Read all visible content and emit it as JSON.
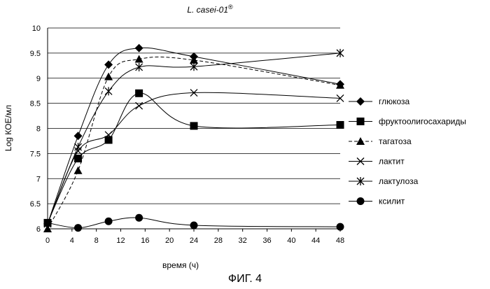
{
  "chart_data": {
    "type": "line",
    "title": "L. casei-01",
    "title_mark": "®",
    "xlabel": "время (ч)",
    "ylabel": "Log КОЕ/мл",
    "xlim": [
      0,
      48
    ],
    "ylim": [
      6,
      10
    ],
    "x_ticks": [
      "0",
      "4",
      "8",
      "12",
      "16",
      "20",
      "24",
      "28",
      "32",
      "36",
      "40",
      "44",
      "48"
    ],
    "y_ticks": [
      "6",
      "6.5",
      "7",
      "7.5",
      "8",
      "8.5",
      "9",
      "9.5",
      "10"
    ],
    "grid": "horizontal",
    "legend_position": "right",
    "series": [
      {
        "name": "глюкоза",
        "marker": "diamond",
        "dash": "solid",
        "x": [
          0,
          5,
          10,
          15,
          24,
          48
        ],
        "values": [
          6.1,
          7.85,
          9.27,
          9.6,
          9.43,
          8.88
        ]
      },
      {
        "name": "фруктоолигосахариды",
        "marker": "square",
        "dash": "solid",
        "x": [
          0,
          5,
          10,
          15,
          24,
          48
        ],
        "values": [
          6.12,
          7.4,
          7.77,
          8.7,
          8.05,
          8.07
        ]
      },
      {
        "name": "тагатоза",
        "marker": "triangle",
        "dash": "dashed",
        "x": [
          0,
          5,
          10,
          15,
          24,
          48
        ],
        "values": [
          6.0,
          7.16,
          9.03,
          9.38,
          9.36,
          8.86
        ]
      },
      {
        "name": "лактит",
        "marker": "x",
        "dash": "solid",
        "x": [
          0,
          5,
          10,
          15,
          24,
          48
        ],
        "values": [
          6.1,
          7.55,
          7.87,
          8.45,
          8.71,
          8.6
        ]
      },
      {
        "name": "лактулоза",
        "marker": "star",
        "dash": "solid",
        "x": [
          0,
          5,
          10,
          15,
          24,
          48
        ],
        "values": [
          6.1,
          7.63,
          8.74,
          9.22,
          9.23,
          9.5
        ]
      },
      {
        "name": "ксилит",
        "marker": "circle",
        "dash": "solid",
        "x": [
          0,
          5,
          10,
          15,
          24,
          48
        ],
        "values": [
          6.12,
          6.02,
          6.15,
          6.22,
          6.07,
          6.04
        ]
      }
    ]
  },
  "figure_label": "ФИГ. 4"
}
